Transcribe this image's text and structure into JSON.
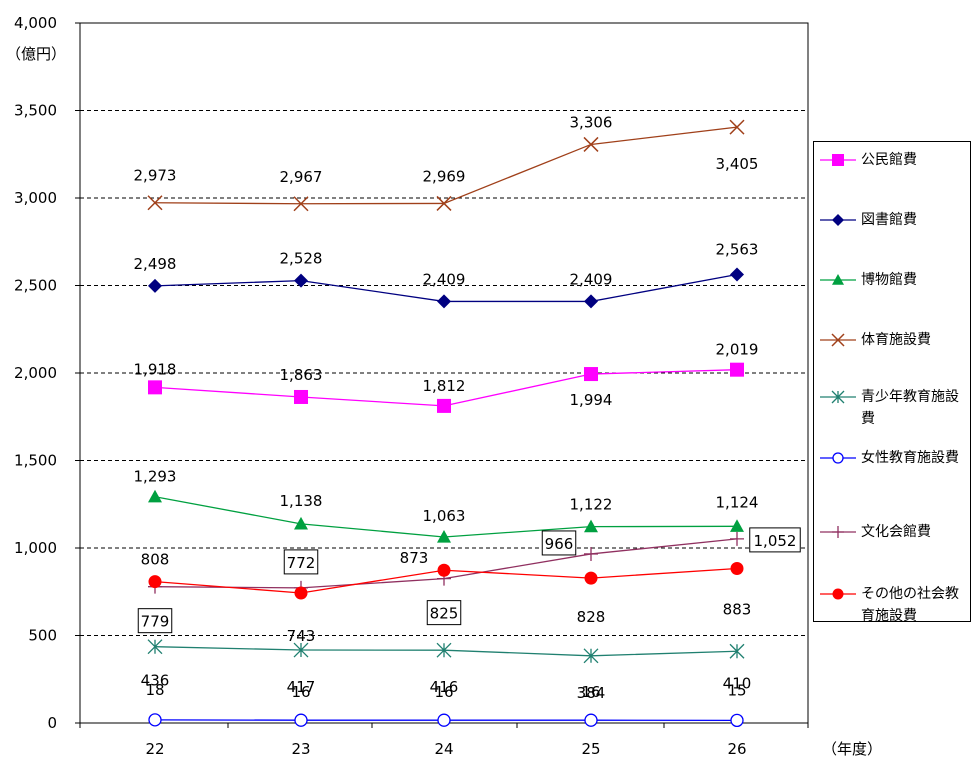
{
  "chart_data": {
    "type": "line",
    "ylabel": "（億円）",
    "xlabel": "（年度）",
    "x": [
      "22",
      "23",
      "24",
      "25",
      "26"
    ],
    "ylim": [
      0,
      4000
    ],
    "yticks": [
      "0",
      "500",
      "1,000",
      "1,500",
      "2,000",
      "2,500",
      "3,000",
      "3,500",
      "4,000"
    ],
    "grid": "horizontal dashed",
    "legend_position": "right",
    "series": [
      {
        "name": "公民館費",
        "values": [
          1918,
          1863,
          1812,
          1994,
          2019
        ],
        "labels": [
          "1,918",
          "1,863",
          "1,812",
          "1,994",
          "2,019"
        ],
        "color": "#ff00ff",
        "marker": "square"
      },
      {
        "name": "図書館費",
        "values": [
          2498,
          2528,
          2409,
          2409,
          2563
        ],
        "labels": [
          "2,498",
          "2,528",
          "2,409",
          "2,409",
          "2,563"
        ],
        "color": "#000080",
        "marker": "diamond"
      },
      {
        "name": "博物館費",
        "values": [
          1293,
          1138,
          1063,
          1122,
          1124
        ],
        "labels": [
          "1,293",
          "1,138",
          "1,063",
          "1,122",
          "1,124"
        ],
        "color": "#00a040",
        "marker": "triangle"
      },
      {
        "name": "体育施設費",
        "values": [
          2973,
          2967,
          2969,
          3306,
          3405
        ],
        "labels": [
          "2,973",
          "2,967",
          "2,969",
          "3,306",
          "3,405"
        ],
        "color": "#a0401a",
        "marker": "x"
      },
      {
        "name": "青少年教育施設費",
        "values": [
          436,
          417,
          416,
          384,
          410
        ],
        "labels": [
          "436",
          "417",
          "416",
          "384",
          "410"
        ],
        "color": "#208070",
        "marker": "asterisk"
      },
      {
        "name": "女性教育施設費",
        "values": [
          18,
          16,
          16,
          16,
          15
        ],
        "labels": [
          "18",
          "16",
          "16",
          "16",
          "15"
        ],
        "color": "#0000ff",
        "marker": "circle-open"
      },
      {
        "name": "文化会館費",
        "values": [
          779,
          772,
          825,
          966,
          1052
        ],
        "labels": [
          "779",
          "772",
          "825",
          "966",
          "1,052"
        ],
        "color": "#903060",
        "marker": "plus",
        "boxed_labels": true
      },
      {
        "name": "その他の社会教育施設費",
        "values": [
          808,
          743,
          873,
          828,
          883
        ],
        "labels": [
          "808",
          "743",
          "873",
          "828",
          "883"
        ],
        "color": "#ff0000",
        "marker": "circle"
      }
    ]
  }
}
